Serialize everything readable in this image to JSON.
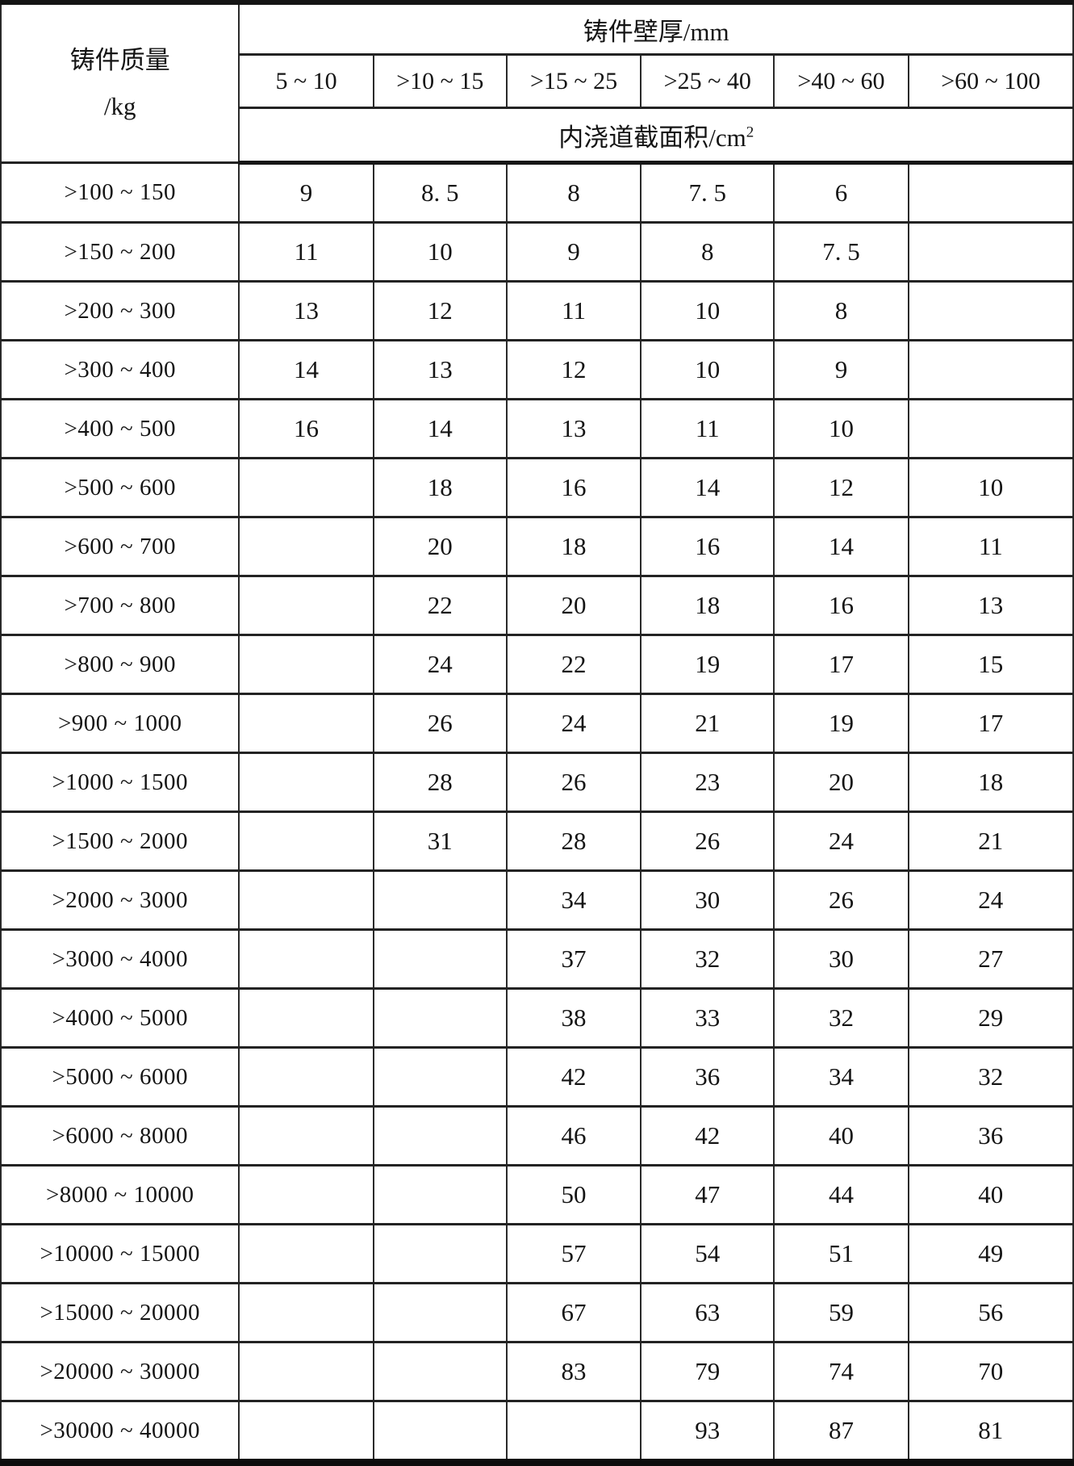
{
  "table": {
    "row_group_header": {
      "line1": "铸件质量",
      "line2": "/kg"
    },
    "col_group_header": "铸件壁厚/mm",
    "subheader": {
      "text": "内浇道截面积/cm",
      "superscript": "2"
    },
    "columns": [
      "5 ~ 10",
      ">10 ~ 15",
      ">15 ~ 25",
      ">25 ~ 40",
      ">40 ~ 60",
      ">60 ~ 100"
    ],
    "rows": [
      {
        "label": ">100 ~ 150",
        "values": [
          "9",
          "8. 5",
          "8",
          "7. 5",
          "6",
          ""
        ]
      },
      {
        "label": ">150 ~ 200",
        "values": [
          "11",
          "10",
          "9",
          "8",
          "7. 5",
          ""
        ]
      },
      {
        "label": ">200 ~ 300",
        "values": [
          "13",
          "12",
          "11",
          "10",
          "8",
          ""
        ]
      },
      {
        "label": ">300 ~ 400",
        "values": [
          "14",
          "13",
          "12",
          "10",
          "9",
          ""
        ]
      },
      {
        "label": ">400 ~ 500",
        "values": [
          "16",
          "14",
          "13",
          "11",
          "10",
          ""
        ]
      },
      {
        "label": ">500 ~ 600",
        "values": [
          "",
          "18",
          "16",
          "14",
          "12",
          "10"
        ]
      },
      {
        "label": ">600 ~ 700",
        "values": [
          "",
          "20",
          "18",
          "16",
          "14",
          "11"
        ]
      },
      {
        "label": ">700 ~ 800",
        "values": [
          "",
          "22",
          "20",
          "18",
          "16",
          "13"
        ]
      },
      {
        "label": ">800 ~ 900",
        "values": [
          "",
          "24",
          "22",
          "19",
          "17",
          "15"
        ]
      },
      {
        "label": ">900 ~ 1000",
        "values": [
          "",
          "26",
          "24",
          "21",
          "19",
          "17"
        ]
      },
      {
        "label": ">1000 ~ 1500",
        "values": [
          "",
          "28",
          "26",
          "23",
          "20",
          "18"
        ]
      },
      {
        "label": ">1500 ~ 2000",
        "values": [
          "",
          "31",
          "28",
          "26",
          "24",
          "21"
        ]
      },
      {
        "label": ">2000 ~ 3000",
        "values": [
          "",
          "",
          "34",
          "30",
          "26",
          "24"
        ]
      },
      {
        "label": ">3000 ~ 4000",
        "values": [
          "",
          "",
          "37",
          "32",
          "30",
          "27"
        ]
      },
      {
        "label": ">4000 ~ 5000",
        "values": [
          "",
          "",
          "38",
          "33",
          "32",
          "29"
        ]
      },
      {
        "label": ">5000 ~ 6000",
        "values": [
          "",
          "",
          "42",
          "36",
          "34",
          "32"
        ]
      },
      {
        "label": ">6000 ~ 8000",
        "values": [
          "",
          "",
          "46",
          "42",
          "40",
          "36"
        ]
      },
      {
        "label": ">8000 ~ 10000",
        "values": [
          "",
          "",
          "50",
          "47",
          "44",
          "40"
        ]
      },
      {
        "label": ">10000 ~ 15000",
        "values": [
          "",
          "",
          "57",
          "54",
          "51",
          "49"
        ]
      },
      {
        "label": ">15000 ~ 20000",
        "values": [
          "",
          "",
          "67",
          "63",
          "59",
          "56"
        ]
      },
      {
        "label": ">20000 ~ 30000",
        "values": [
          "",
          "",
          "83",
          "79",
          "74",
          "70"
        ]
      },
      {
        "label": ">30000 ~ 40000",
        "values": [
          "",
          "",
          "",
          "93",
          "87",
          "81"
        ]
      }
    ]
  }
}
